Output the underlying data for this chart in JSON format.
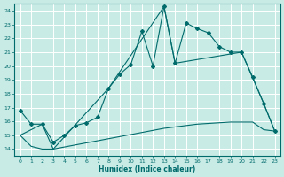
{
  "xlabel": "Humidex (Indice chaleur)",
  "ylabel": "",
  "bg_color": "#c8ebe6",
  "grid_color": "#ffffff",
  "line_color": "#006b6b",
  "xlim": [
    -0.5,
    23.5
  ],
  "ylim": [
    13.5,
    24.5
  ],
  "xticks": [
    0,
    1,
    2,
    3,
    4,
    5,
    6,
    7,
    8,
    9,
    10,
    11,
    12,
    13,
    14,
    15,
    16,
    17,
    18,
    19,
    20,
    21,
    22,
    23
  ],
  "yticks": [
    14,
    15,
    16,
    17,
    18,
    19,
    20,
    21,
    22,
    23,
    24
  ],
  "line1_x": [
    0,
    1,
    2,
    3,
    4,
    5,
    6,
    7,
    8,
    9,
    10,
    11,
    12,
    13,
    14,
    15,
    16,
    17,
    18,
    19,
    20,
    21,
    22,
    23
  ],
  "line1_y": [
    16.8,
    15.8,
    15.8,
    14.5,
    15.0,
    15.7,
    15.9,
    16.3,
    18.4,
    19.4,
    20.1,
    22.5,
    20.0,
    24.3,
    20.2,
    23.1,
    22.7,
    22.4,
    21.4,
    21.0,
    21.0,
    19.2,
    17.3,
    15.3
  ],
  "line2_x": [
    0,
    1,
    2,
    3,
    4,
    5,
    6,
    7,
    8,
    9,
    10,
    11,
    12,
    13,
    14,
    15,
    16,
    17,
    18,
    19,
    20,
    21,
    22,
    23
  ],
  "line2_y": [
    15.0,
    14.2,
    14.0,
    14.0,
    14.15,
    14.3,
    14.45,
    14.6,
    14.75,
    14.9,
    15.05,
    15.2,
    15.35,
    15.5,
    15.6,
    15.7,
    15.8,
    15.85,
    15.9,
    15.95,
    15.95,
    15.95,
    15.4,
    15.3
  ],
  "line3_x": [
    0,
    2,
    3,
    8,
    13,
    14,
    20,
    22,
    23
  ],
  "line3_y": [
    15.0,
    15.8,
    14.0,
    18.4,
    24.3,
    20.2,
    21.0,
    17.3,
    15.3
  ]
}
